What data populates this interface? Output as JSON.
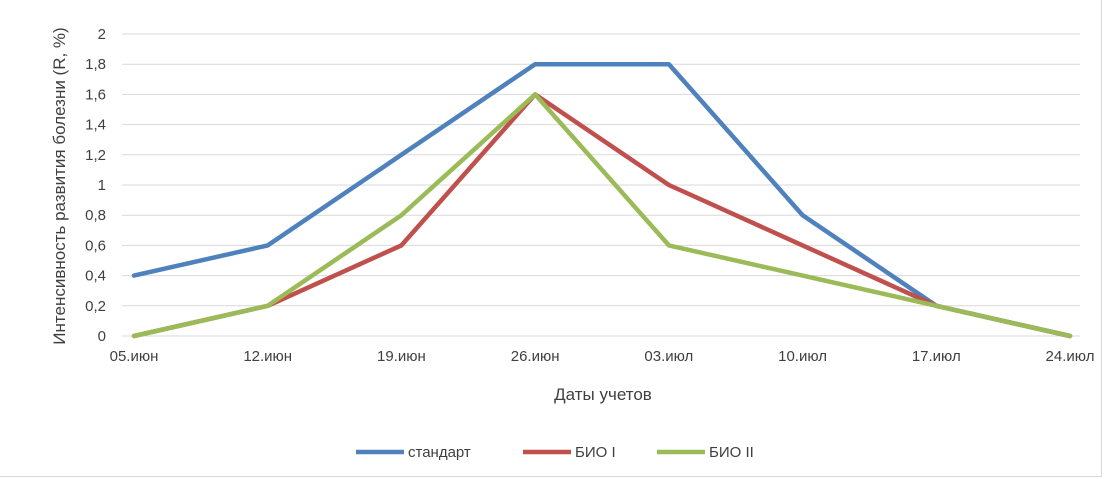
{
  "chart_data": {
    "type": "line",
    "categories": [
      "05.июн",
      "12.июн",
      "19.июн",
      "26.июн",
      "03.июл",
      "10.июл",
      "17.июл",
      "24.июл"
    ],
    "series": [
      {
        "name": "стандарт",
        "color": "#4f81bd",
        "values": [
          0.4,
          0.6,
          1.2,
          1.8,
          1.8,
          0.8,
          0.2,
          0
        ]
      },
      {
        "name": "БИО I",
        "color": "#c0504d",
        "values": [
          0,
          0.2,
          0.6,
          1.6,
          1.0,
          0.6,
          0.2,
          0
        ]
      },
      {
        "name": "БИО II",
        "color": "#9bbb59",
        "values": [
          0,
          0.2,
          0.8,
          1.6,
          0.6,
          0.4,
          0.2,
          0
        ]
      }
    ],
    "y_ticks": [
      "0",
      "0,2",
      "0,4",
      "0,6",
      "0,8",
      "1",
      "1,2",
      "1,4",
      "1,6",
      "1,8",
      "2"
    ],
    "ylim": [
      0,
      2
    ],
    "xlabel": "Даты учетов",
    "ylabel": "Интенсивность развития болезни (R, %)",
    "grid": true,
    "legend_position": "bottom"
  }
}
